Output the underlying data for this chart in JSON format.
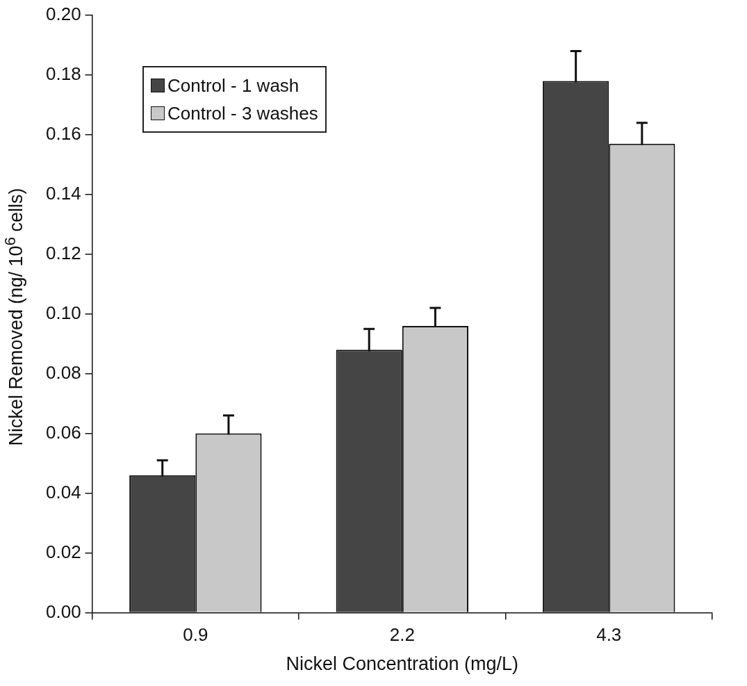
{
  "chart_data": {
    "type": "bar",
    "xlabel": "Nickel Concentration (mg/L)",
    "ylabel": "Nickel Removed (ng/ 10$^{6}$ cells)",
    "categories": [
      "0.9",
      "2.2",
      "4.3"
    ],
    "series": [
      {
        "name": "Control - 1 wash",
        "color": "#454545",
        "values": [
          0.046,
          0.088,
          0.178
        ],
        "errors": [
          0.005,
          0.007,
          0.01
        ]
      },
      {
        "name": "Control - 3 washes",
        "color": "#c8c8c8",
        "values": [
          0.06,
          0.096,
          0.157
        ],
        "errors": [
          0.006,
          0.006,
          0.007
        ]
      }
    ],
    "ylim": [
      0,
      0.2
    ],
    "yticks": [
      {
        "value": 0,
        "label": "0.00"
      },
      {
        "value": 0.02,
        "label": "0.02"
      },
      {
        "value": 0.04,
        "label": "0.04"
      },
      {
        "value": 0.06,
        "label": "0.06"
      },
      {
        "value": 0.08,
        "label": "0.08"
      },
      {
        "value": 0.1,
        "label": "0.10"
      },
      {
        "value": 0.12,
        "label": "0.12"
      },
      {
        "value": 0.14,
        "label": "0.14"
      },
      {
        "value": 0.16,
        "label": "0.16"
      },
      {
        "value": 0.18,
        "label": "0.18"
      },
      {
        "value": 0.2,
        "label": "0.20"
      }
    ],
    "grid": false,
    "legend": "top left"
  }
}
